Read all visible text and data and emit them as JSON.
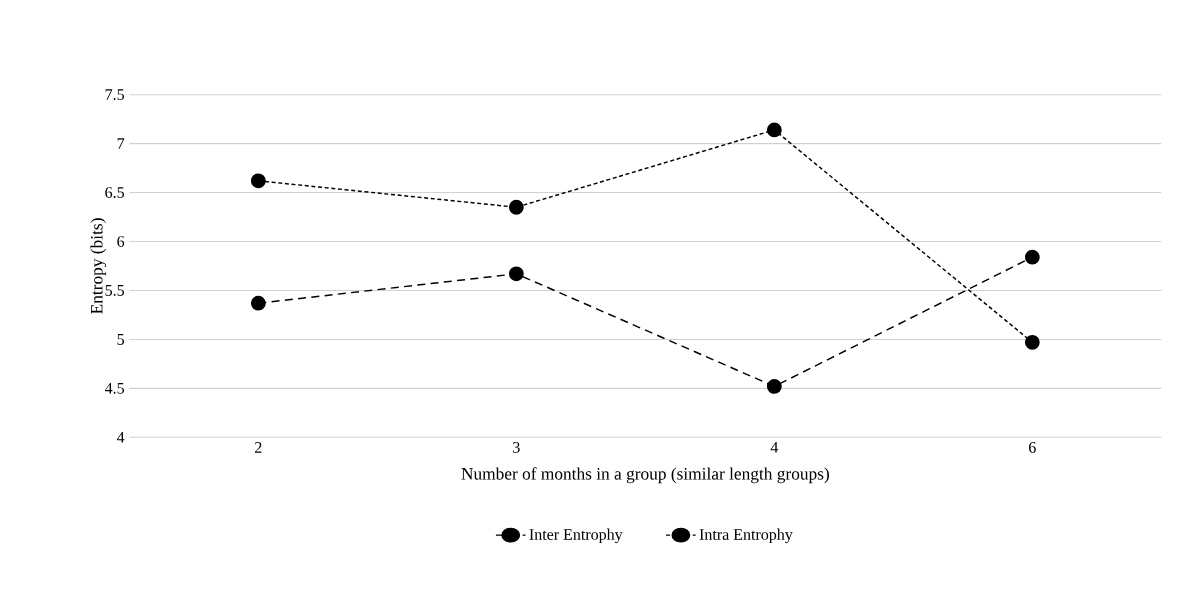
{
  "chart_data": {
    "type": "line",
    "xlabel": "Number of months in a group (similar length groups)",
    "ylabel": "Entropy (bits)",
    "categories": [
      "2",
      "3",
      "4",
      "6"
    ],
    "series": [
      {
        "name": "Inter Entrophy",
        "color": "#000000",
        "line_style": "dashed",
        "values": [
          5.37,
          5.67,
          4.52,
          5.84
        ]
      },
      {
        "name": "Intra Entrophy",
        "color": "#000000",
        "line_style": "dotted",
        "values": [
          6.62,
          6.35,
          7.14,
          4.97
        ]
      }
    ],
    "ylim": [
      4,
      7.5
    ],
    "yticks": [
      4,
      4.5,
      5,
      5.5,
      6,
      6.5,
      7,
      7.5
    ],
    "grid": "y",
    "legend": "bottom",
    "marker": "circle"
  }
}
